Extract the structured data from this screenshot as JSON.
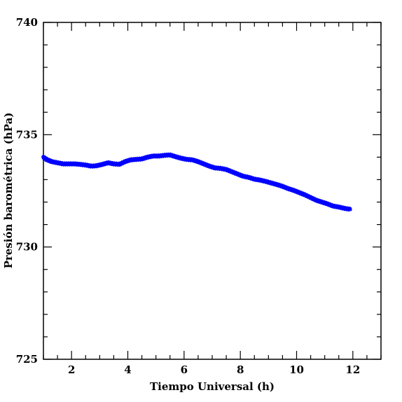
{
  "chart_data": {
    "type": "scatter",
    "title": "",
    "xlabel": "Tiempo Universal (h)",
    "ylabel": "Presión barométrica (hPa)",
    "xlim": [
      1,
      13
    ],
    "ylim": [
      725,
      740
    ],
    "x_ticks": [
      2,
      4,
      6,
      8,
      10,
      12
    ],
    "y_ticks": [
      725,
      730,
      735,
      740
    ],
    "x_tick_labels": [
      "2",
      "4",
      "6",
      "8",
      "10",
      "12"
    ],
    "y_tick_labels": [
      "725",
      "730",
      "735",
      "740"
    ],
    "marker_color": "#0000ff",
    "grid": false,
    "series": [
      {
        "x": [
          1.0,
          1.1,
          1.2,
          1.3,
          1.5,
          1.7,
          1.9,
          2.1,
          2.3,
          2.5,
          2.7,
          2.9,
          3.1,
          3.3,
          3.5,
          3.7,
          3.9,
          4.1,
          4.3,
          4.5,
          4.7,
          4.9,
          5.1,
          5.3,
          5.5,
          5.7,
          5.9,
          6.1,
          6.3,
          6.5,
          6.7,
          6.9,
          7.1,
          7.3,
          7.5,
          7.7,
          7.9,
          8.1,
          8.3,
          8.5,
          8.7,
          8.9,
          9.1,
          9.3,
          9.5,
          9.7,
          9.9,
          10.1,
          10.3,
          10.5,
          10.7,
          10.9,
          11.1,
          11.3,
          11.5,
          11.7,
          11.9
        ],
        "y": [
          734.0,
          733.9,
          733.85,
          733.8,
          733.75,
          733.7,
          733.7,
          733.7,
          733.68,
          733.65,
          733.6,
          733.62,
          733.68,
          733.75,
          733.7,
          733.68,
          733.8,
          733.88,
          733.9,
          733.92,
          734.0,
          734.05,
          734.05,
          734.08,
          734.1,
          734.02,
          733.95,
          733.9,
          733.88,
          733.8,
          733.7,
          733.6,
          733.52,
          733.5,
          733.45,
          733.35,
          733.25,
          733.15,
          733.1,
          733.02,
          732.98,
          732.92,
          732.85,
          732.78,
          732.7,
          732.6,
          732.52,
          732.42,
          732.32,
          732.2,
          732.08,
          732.0,
          731.92,
          731.82,
          731.78,
          731.72,
          731.68
        ]
      }
    ]
  }
}
